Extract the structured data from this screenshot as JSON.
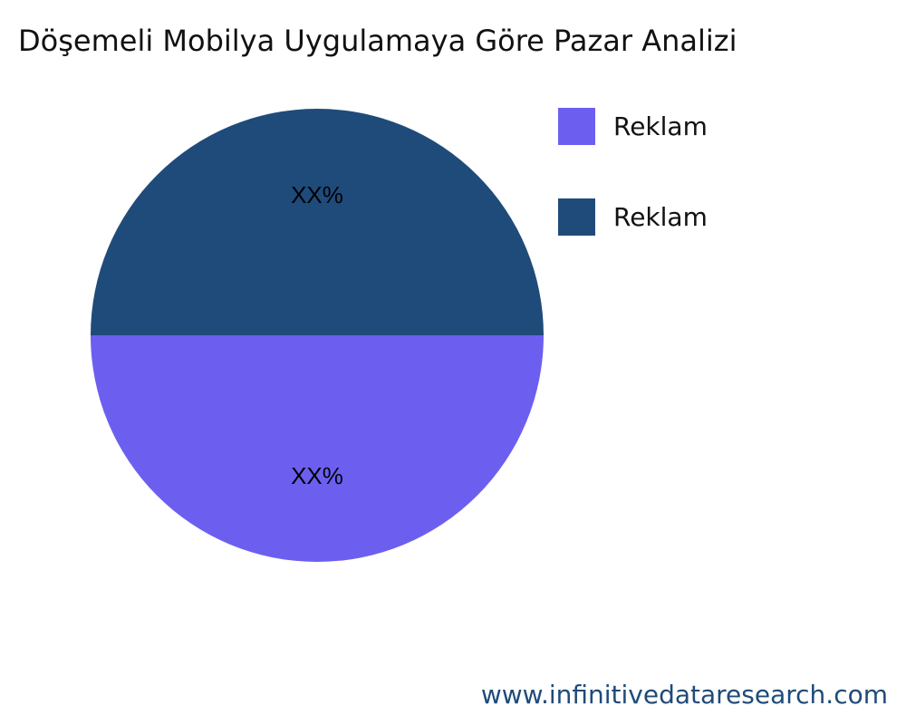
{
  "chart_data": {
    "type": "pie",
    "title": "Döşemeli Mobilya Uygulamaya Göre Pazar Analizi",
    "slices": [
      {
        "name": "Reklam",
        "value": 50,
        "label": "XX%",
        "color": "#6c5ff0"
      },
      {
        "name": "Reklam",
        "value": 50,
        "label": "XX%",
        "color": "#1f4b7a"
      }
    ],
    "legend_position": "right"
  },
  "footer": "www.infinitivedataresearch.com"
}
